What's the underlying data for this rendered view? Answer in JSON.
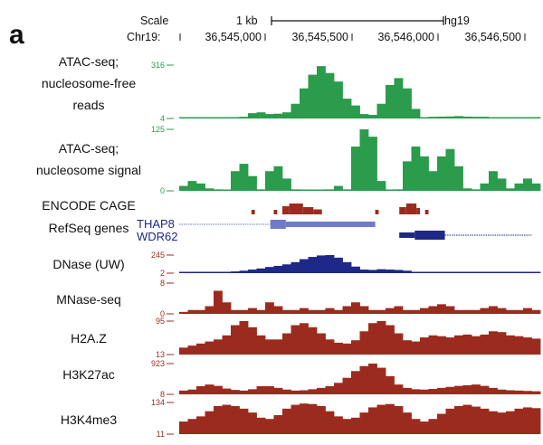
{
  "panel_label": "a",
  "header": {
    "scale_label": "Scale",
    "scale_bar_label": "1 kb",
    "assembly": "hg19",
    "chrom_label": "Chr19:",
    "positions": [
      "36,545,000",
      "36,545,500",
      "36,546,000",
      "36,546,500"
    ]
  },
  "colors": {
    "green": "#2b9b4c",
    "red": "#9c2b1f",
    "navy": "#1d2887",
    "light_blue": "#6f7bc6"
  },
  "chart_data": {
    "type": "area",
    "x_start": 36544500,
    "x_step": 50,
    "tracks": [
      {
        "label": [
          "ATAC-seq;",
          "nucleosome-free",
          "reads"
        ],
        "ymin": 4,
        "ymax": 316,
        "ticks": [
          "316",
          "4"
        ],
        "color": "#2b9b4c",
        "values": [
          4,
          4,
          4,
          10,
          10,
          12,
          12,
          14,
          35,
          40,
          30,
          32,
          40,
          90,
          180,
          260,
          310,
          270,
          220,
          120,
          80,
          30,
          25,
          90,
          200,
          240,
          180,
          60,
          12,
          14,
          15,
          16,
          18,
          15,
          14,
          14,
          4,
          10,
          10,
          4,
          4,
          4
        ]
      },
      {
        "label": [
          "ATAC-seq;",
          "nucleosome signal"
        ],
        "ymin": 0,
        "ymax": 125,
        "ticks": [
          "125",
          "0"
        ],
        "color": "#2b9b4c",
        "values": [
          10,
          20,
          15,
          5,
          3,
          2,
          40,
          55,
          30,
          3,
          40,
          50,
          25,
          3,
          2,
          2,
          2,
          3,
          10,
          3,
          90,
          125,
          110,
          20,
          2,
          3,
          60,
          90,
          70,
          40,
          70,
          85,
          50,
          5,
          3,
          15,
          40,
          25,
          5,
          15,
          25,
          15
        ]
      },
      {
        "label": [
          "DNase (UW)"
        ],
        "ymin": 2,
        "ymax": 245,
        "ticks": [
          "245",
          "2"
        ],
        "color": "#1d2887",
        "values": [
          2,
          3,
          5,
          8,
          12,
          18,
          25,
          35,
          50,
          65,
          85,
          100,
          120,
          150,
          190,
          220,
          240,
          245,
          210,
          150,
          90,
          50,
          45,
          55,
          50,
          45,
          35,
          20,
          12,
          10,
          8,
          10,
          8,
          6,
          6,
          5,
          5,
          4,
          4,
          3,
          3,
          3
        ]
      },
      {
        "label": [
          "MNase-seq"
        ],
        "ymin": 0,
        "ymax": 8,
        "ticks": [
          "8",
          "0"
        ],
        "color": "#9c2b1f",
        "values": [
          0.5,
          1,
          1,
          2,
          6,
          3,
          1,
          1,
          1.5,
          1,
          3,
          2,
          1,
          1,
          1.5,
          1,
          1,
          1.5,
          1,
          2,
          3,
          2,
          1,
          1,
          1.5,
          2,
          1,
          1,
          1.5,
          2,
          2.5,
          2,
          1,
          1,
          1,
          1.5,
          2,
          1.5,
          1,
          1,
          1.5,
          1
        ]
      },
      {
        "label": [
          "H2A.Z"
        ],
        "ymin": 13,
        "ymax": 95,
        "ticks": [
          "95",
          "13"
        ],
        "color": "#9c2b1f",
        "values": [
          30,
          35,
          40,
          45,
          50,
          60,
          85,
          95,
          80,
          60,
          50,
          50,
          65,
          85,
          90,
          80,
          65,
          50,
          42,
          40,
          48,
          70,
          90,
          95,
          85,
          65,
          48,
          45,
          55,
          60,
          58,
          55,
          60,
          62,
          58,
          62,
          70,
          68,
          60,
          58,
          55,
          52
        ]
      },
      {
        "label": [
          "H3K27ac"
        ],
        "ymin": 8,
        "ymax": 923,
        "ticks": [
          "923",
          "8"
        ],
        "color": "#9c2b1f",
        "values": [
          120,
          150,
          250,
          300,
          260,
          180,
          140,
          120,
          160,
          250,
          250,
          200,
          150,
          120,
          130,
          160,
          200,
          250,
          350,
          500,
          700,
          850,
          923,
          800,
          550,
          300,
          200,
          160,
          150,
          170,
          200,
          230,
          260,
          280,
          300,
          260,
          200,
          150,
          130,
          120,
          110,
          100
        ]
      },
      {
        "label": [
          "H3K4me3"
        ],
        "ymin": 11,
        "ymax": 134,
        "ticks": [
          "134",
          "11"
        ],
        "color": "#9c2b1f",
        "values": [
          60,
          70,
          80,
          100,
          120,
          125,
          120,
          110,
          95,
          75,
          70,
          85,
          110,
          125,
          130,
          128,
          120,
          100,
          80,
          70,
          75,
          95,
          115,
          125,
          128,
          120,
          95,
          70,
          60,
          70,
          90,
          110,
          120,
          125,
          118,
          110,
          100,
          95,
          100,
          110,
          115,
          112
        ]
      }
    ],
    "cage": {
      "label": "ENCODE CAGE",
      "color": "#9c2b1f",
      "blocks": [
        [
          36544920,
          36544940,
          0.3
        ],
        [
          36545050,
          36545070,
          0.3
        ],
        [
          36545100,
          36545140,
          0.7
        ],
        [
          36545140,
          36545220,
          1.0
        ],
        [
          36545220,
          36545280,
          0.6
        ],
        [
          36545280,
          36545330,
          0.35
        ],
        [
          36545640,
          36545660,
          0.3
        ],
        [
          36545780,
          36545820,
          0.6
        ],
        [
          36545820,
          36545880,
          1.0
        ],
        [
          36545880,
          36545900,
          0.5
        ],
        [
          36545930,
          36545950,
          0.3
        ]
      ]
    },
    "genes": {
      "label": "RefSeq genes",
      "items": [
        {
          "name": "THAP8",
          "color": "#6f7bc6",
          "line": [
            36544500,
            36545640
          ],
          "thin": [
            36545120,
            36545640
          ],
          "thick": [
            36545030,
            36545120
          ],
          "arrows": [
            36544500,
            36545030
          ]
        },
        {
          "name": "WDR62",
          "color": "#1d2887",
          "line": [
            36545780,
            36546550
          ],
          "thin": [
            36545780,
            36545870
          ],
          "thick": [
            36545870,
            36546045
          ],
          "arrows": [
            36546045,
            36546550
          ]
        }
      ]
    }
  }
}
